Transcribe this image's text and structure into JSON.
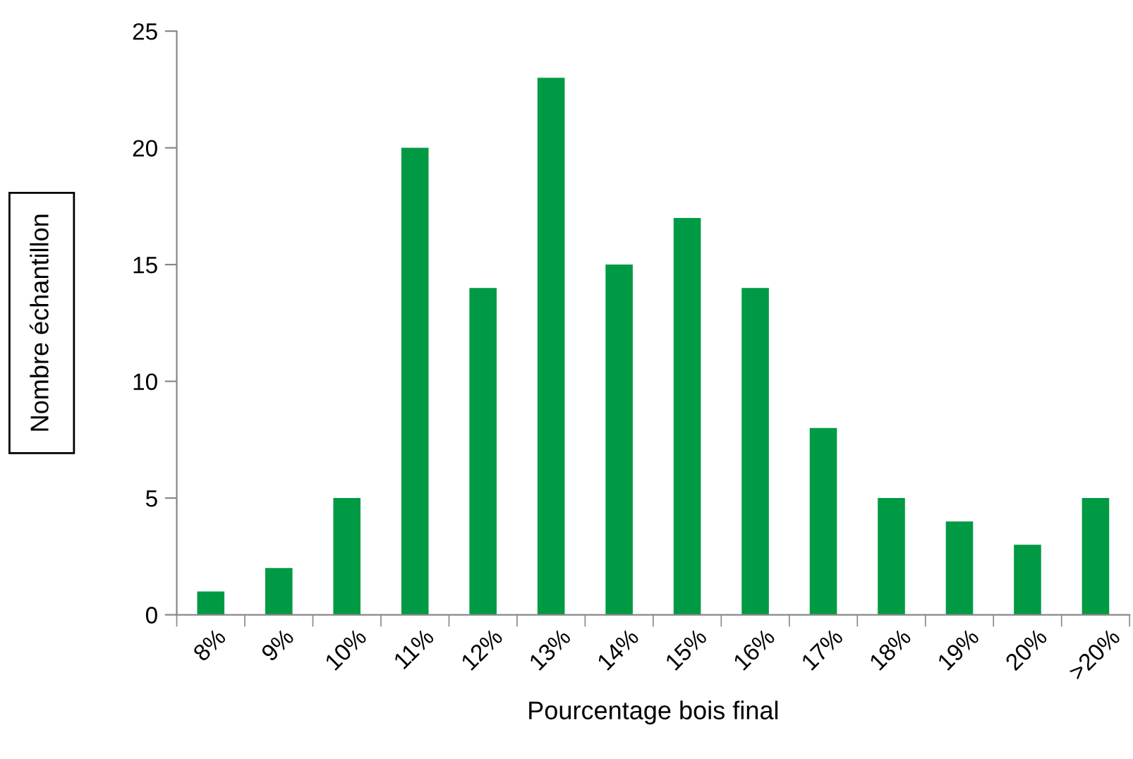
{
  "chart_data": {
    "type": "bar",
    "xlabel": "Pourcentage bois final",
    "ylabel": "Nombre échantillon",
    "categories": [
      "8%",
      "9%",
      "10%",
      "11%",
      "12%",
      "13%",
      "14%",
      "15%",
      "16%",
      "17%",
      "18%",
      "19%",
      "20%",
      ">20%"
    ],
    "values": [
      1,
      2,
      5,
      20,
      14,
      23,
      15,
      17,
      14,
      8,
      5,
      4,
      3,
      5
    ],
    "color": "#009a44",
    "ylim": [
      0,
      25
    ],
    "yticks": [
      0,
      5,
      10,
      15,
      20,
      25
    ],
    "grid": false,
    "legend": false
  }
}
